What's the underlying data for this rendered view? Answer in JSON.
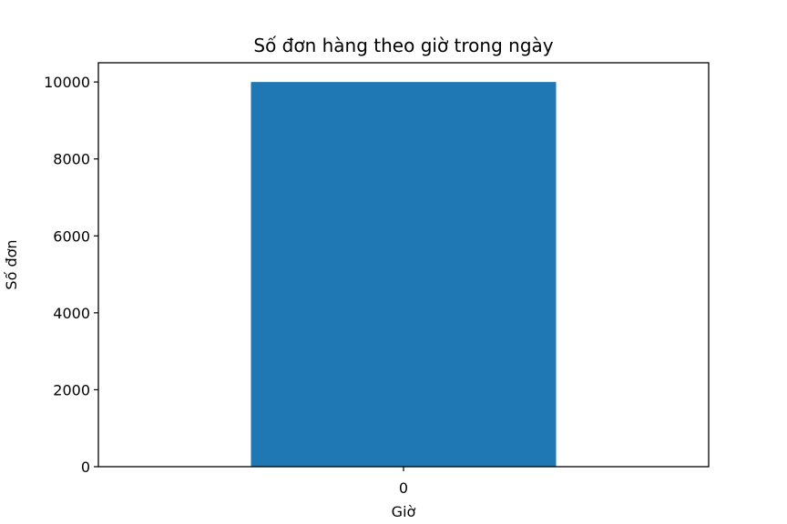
{
  "chart_data": {
    "type": "bar",
    "title": "Số đơn hàng theo giờ trong ngày",
    "xlabel": "Giờ",
    "ylabel": "Số đơn",
    "categories": [
      "0"
    ],
    "values": [
      10000
    ],
    "ylim": [
      0,
      10500
    ],
    "yticks": [
      0,
      2000,
      4000,
      6000,
      8000,
      10000
    ],
    "ytick_labels": [
      "0",
      "2000",
      "4000",
      "6000",
      "8000",
      "10000"
    ],
    "bar_color": "#1f77b4",
    "grid": false,
    "legend": "none"
  }
}
